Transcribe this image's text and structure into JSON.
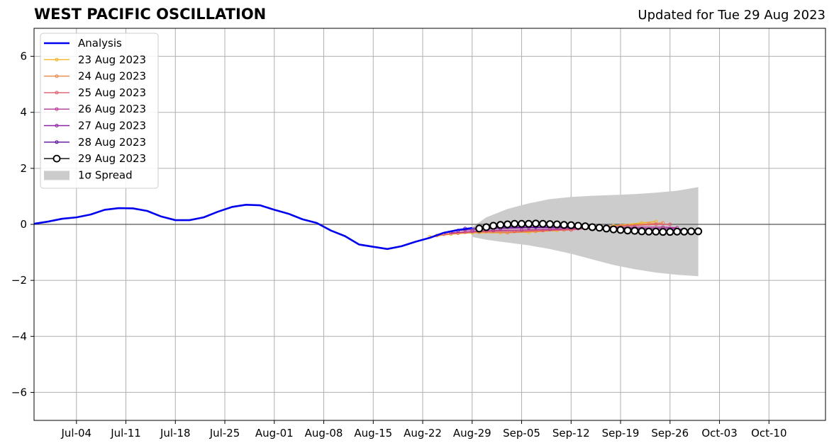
{
  "header": {
    "title": "WEST PACIFIC OSCILLATION",
    "updated": "Updated for Tue 29 Aug 2023"
  },
  "chart_data": {
    "type": "line",
    "title": "WEST PACIFIC OSCILLATION",
    "xlabel": "",
    "ylabel": "",
    "xlim": [
      "2023-06-28",
      "2023-10-18"
    ],
    "ylim": [
      -7,
      7
    ],
    "grid": true,
    "legend_position": "top-left",
    "x_ticks": [
      "Jul-04",
      "Jul-11",
      "Jul-18",
      "Jul-25",
      "Aug-01",
      "Aug-08",
      "Aug-15",
      "Aug-22",
      "Aug-29",
      "Sep-05",
      "Sep-12",
      "Sep-19",
      "Sep-26",
      "Oct-03",
      "Oct-10"
    ],
    "x_tick_dates": [
      "2023-07-04",
      "2023-07-11",
      "2023-07-18",
      "2023-07-25",
      "2023-08-01",
      "2023-08-08",
      "2023-08-15",
      "2023-08-22",
      "2023-08-29",
      "2023-09-05",
      "2023-09-12",
      "2023-09-19",
      "2023-09-26",
      "2023-10-03",
      "2023-10-10"
    ],
    "y_ticks": [
      6,
      4,
      2,
      0,
      -2,
      -4,
      -6
    ],
    "y_tick_labels": [
      "6",
      "4",
      "2",
      "0",
      "−2",
      "−4",
      "−6"
    ],
    "analysis": {
      "name": "Analysis",
      "color": "#0000ee",
      "x": [
        "2023-06-28",
        "2023-06-30",
        "2023-07-02",
        "2023-07-04",
        "2023-07-06",
        "2023-07-08",
        "2023-07-10",
        "2023-07-12",
        "2023-07-14",
        "2023-07-16",
        "2023-07-18",
        "2023-07-20",
        "2023-07-22",
        "2023-07-24",
        "2023-07-26",
        "2023-07-28",
        "2023-07-30",
        "2023-08-01",
        "2023-08-03",
        "2023-08-05",
        "2023-08-07",
        "2023-08-09",
        "2023-08-11",
        "2023-08-13",
        "2023-08-15",
        "2023-08-17",
        "2023-08-19",
        "2023-08-21",
        "2023-08-23",
        "2023-08-25",
        "2023-08-27",
        "2023-08-29"
      ],
      "y": [
        0.02,
        0.1,
        0.2,
        0.25,
        0.35,
        0.52,
        0.58,
        0.57,
        0.48,
        0.28,
        0.15,
        0.15,
        0.25,
        0.45,
        0.62,
        0.7,
        0.68,
        0.52,
        0.38,
        0.18,
        0.05,
        -0.22,
        -0.42,
        -0.72,
        -0.8,
        -0.88,
        -0.78,
        -0.62,
        -0.48,
        -0.3,
        -0.2,
        -0.13
      ]
    },
    "forecasts": [
      {
        "name": "23 Aug 2023",
        "color": "#f5b326",
        "x": [
          "2023-08-23",
          "2023-08-26",
          "2023-08-29",
          "2023-09-02",
          "2023-09-06",
          "2023-09-10",
          "2023-09-14",
          "2023-09-18",
          "2023-09-22",
          "2023-09-24"
        ],
        "y": [
          -0.45,
          -0.35,
          -0.3,
          -0.3,
          -0.28,
          -0.22,
          -0.15,
          -0.05,
          0.05,
          0.1
        ]
      },
      {
        "name": "24 Aug 2023",
        "color": "#ec8746",
        "x": [
          "2023-08-24",
          "2023-08-27",
          "2023-08-30",
          "2023-09-03",
          "2023-09-07",
          "2023-09-11",
          "2023-09-15",
          "2023-09-19",
          "2023-09-23",
          "2023-09-25"
        ],
        "y": [
          -0.4,
          -0.32,
          -0.28,
          -0.3,
          -0.25,
          -0.2,
          -0.12,
          -0.05,
          0.02,
          0.05
        ]
      },
      {
        "name": "25 Aug 2023",
        "color": "#dd5b6e",
        "x": [
          "2023-08-25",
          "2023-08-28",
          "2023-08-31",
          "2023-09-04",
          "2023-09-08",
          "2023-09-12",
          "2023-09-16",
          "2023-09-20",
          "2023-09-24",
          "2023-09-26"
        ],
        "y": [
          -0.35,
          -0.28,
          -0.25,
          -0.25,
          -0.22,
          -0.2,
          -0.1,
          -0.05,
          0.0,
          0.0
        ]
      },
      {
        "name": "26 Aug 2023",
        "color": "#b83592",
        "x": [
          "2023-08-26",
          "2023-08-29",
          "2023-09-01",
          "2023-09-05",
          "2023-09-09",
          "2023-09-13",
          "2023-09-17",
          "2023-09-21",
          "2023-09-25",
          "2023-09-27"
        ],
        "y": [
          -0.3,
          -0.25,
          -0.22,
          -0.2,
          -0.18,
          -0.15,
          -0.12,
          -0.1,
          -0.1,
          -0.12
        ]
      },
      {
        "name": "27 Aug 2023",
        "color": "#8d22a6",
        "x": [
          "2023-08-27",
          "2023-08-30",
          "2023-09-02",
          "2023-09-06",
          "2023-09-10",
          "2023-09-14",
          "2023-09-18",
          "2023-09-22",
          "2023-09-26",
          "2023-09-28"
        ],
        "y": [
          -0.22,
          -0.18,
          -0.15,
          -0.12,
          -0.12,
          -0.12,
          -0.12,
          -0.15,
          -0.15,
          -0.18
        ]
      },
      {
        "name": "28 Aug 2023",
        "color": "#5a0f9c",
        "x": [
          "2023-08-28",
          "2023-08-31",
          "2023-09-03",
          "2023-09-07",
          "2023-09-11",
          "2023-09-15"
        ],
        "y": [
          -0.15,
          -0.12,
          -0.1,
          -0.1,
          -0.1,
          -0.12
        ]
      }
    ],
    "latest": {
      "name": "29 Aug 2023",
      "color": "#000000",
      "x": [
        "2023-08-30",
        "2023-08-31",
        "2023-09-01",
        "2023-09-02",
        "2023-09-03",
        "2023-09-04",
        "2023-09-05",
        "2023-09-06",
        "2023-09-07",
        "2023-09-08",
        "2023-09-09",
        "2023-09-10",
        "2023-09-11",
        "2023-09-12",
        "2023-09-13",
        "2023-09-14",
        "2023-09-15",
        "2023-09-16",
        "2023-09-17",
        "2023-09-18",
        "2023-09-19",
        "2023-09-20",
        "2023-09-21",
        "2023-09-22",
        "2023-09-23",
        "2023-09-24",
        "2023-09-25",
        "2023-09-26",
        "2023-09-27",
        "2023-09-28",
        "2023-09-29",
        "2023-09-30"
      ],
      "y": [
        -0.15,
        -0.1,
        -0.05,
        -0.02,
        0.0,
        0.02,
        0.02,
        0.02,
        0.03,
        0.02,
        0.01,
        0.0,
        -0.02,
        -0.03,
        -0.05,
        -0.07,
        -0.1,
        -0.12,
        -0.15,
        -0.18,
        -0.2,
        -0.22,
        -0.23,
        -0.25,
        -0.26,
        -0.26,
        -0.27,
        -0.27,
        -0.26,
        -0.26,
        -0.25,
        -0.25
      ]
    },
    "spread": {
      "name": "1σ Spread",
      "color": "#cccccc",
      "x": [
        "2023-08-29",
        "2023-08-31",
        "2023-09-03",
        "2023-09-06",
        "2023-09-09",
        "2023-09-12",
        "2023-09-15",
        "2023-09-18",
        "2023-09-21",
        "2023-09-24",
        "2023-09-27",
        "2023-09-30"
      ],
      "upper": [
        -0.1,
        0.25,
        0.55,
        0.75,
        0.9,
        0.98,
        1.02,
        1.05,
        1.08,
        1.13,
        1.2,
        1.33
      ],
      "lower": [
        -0.45,
        -0.55,
        -0.65,
        -0.75,
        -0.88,
        -1.05,
        -1.25,
        -1.45,
        -1.6,
        -1.72,
        -1.8,
        -1.85
      ]
    }
  }
}
